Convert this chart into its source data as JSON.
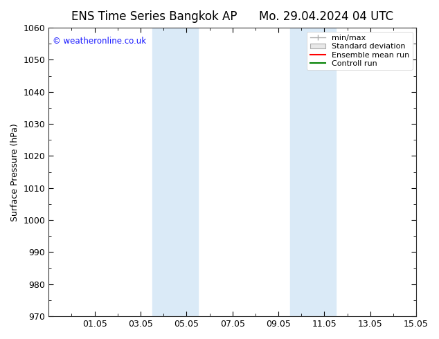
{
  "title": "ENS Time Series Bangkok AP",
  "title2": "Mo. 29.04.2024 04 UTC",
  "ylabel": "Surface Pressure (hPa)",
  "ylim": [
    970,
    1060
  ],
  "yticks": [
    970,
    980,
    990,
    1000,
    1010,
    1020,
    1030,
    1040,
    1050,
    1060
  ],
  "xlim_start": 0,
  "xlim_end": 16,
  "xtick_positions": [
    2,
    4,
    6,
    8,
    10,
    12,
    14,
    16
  ],
  "xtick_labels": [
    "01.05",
    "03.05",
    "05.05",
    "07.05",
    "09.05",
    "11.05",
    "13.05",
    "15.05"
  ],
  "shaded_bands": [
    {
      "x_start": 4.5,
      "x_end": 6.5
    },
    {
      "x_start": 10.5,
      "x_end": 12.5
    }
  ],
  "shade_color": "#daeaf7",
  "copyright_text": "© weatheronline.co.uk",
  "copyright_color": "#1a1aff",
  "legend_items": [
    {
      "label": "min/max",
      "color": "#aaaaaa",
      "type": "hline"
    },
    {
      "label": "Standard deviation",
      "color": "#cccccc",
      "type": "box"
    },
    {
      "label": "Ensemble mean run",
      "color": "red",
      "type": "line"
    },
    {
      "label": "Controll run",
      "color": "green",
      "type": "line"
    }
  ],
  "background_color": "#ffffff",
  "plot_bg_color": "#ffffff",
  "title_fontsize": 12,
  "tick_fontsize": 9,
  "ylabel_fontsize": 9,
  "legend_fontsize": 8
}
